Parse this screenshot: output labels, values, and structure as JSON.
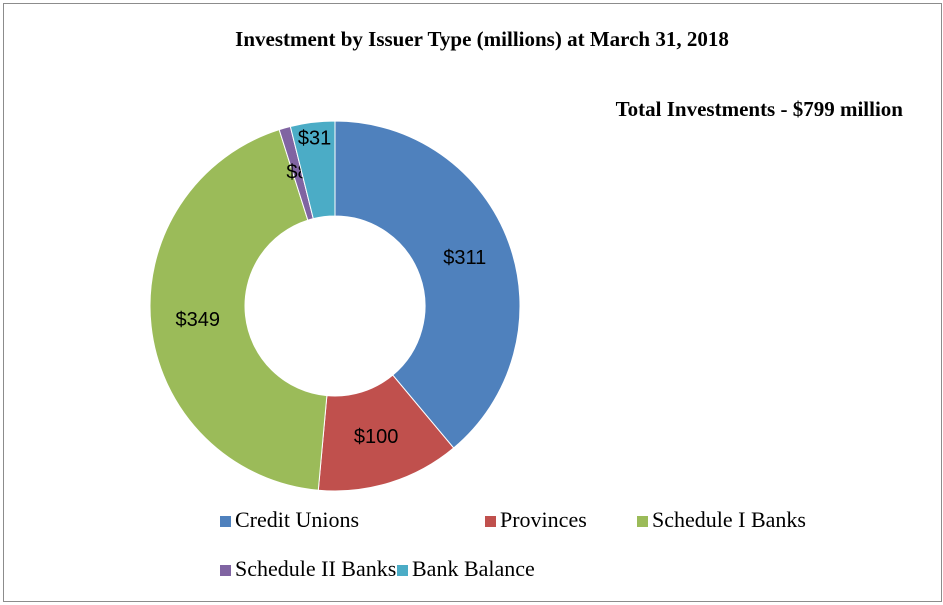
{
  "chart_data": {
    "type": "donut",
    "title": "Investment by Issuer Type (millions) at March 31, 2018",
    "annotation": "Total Investments  - $799 million",
    "categories": [
      "Credit Unions",
      "Provinces",
      "Schedule I Banks",
      "Schedule II Banks",
      "Bank Balance"
    ],
    "values": [
      311,
      100,
      349,
      8,
      31
    ],
    "value_labels": [
      "$311",
      "$100",
      "$349",
      "$8",
      "$31"
    ],
    "colors": [
      "#4f81bd",
      "#c0504d",
      "#9bbb59",
      "#8064a2",
      "#4bacc6"
    ]
  }
}
